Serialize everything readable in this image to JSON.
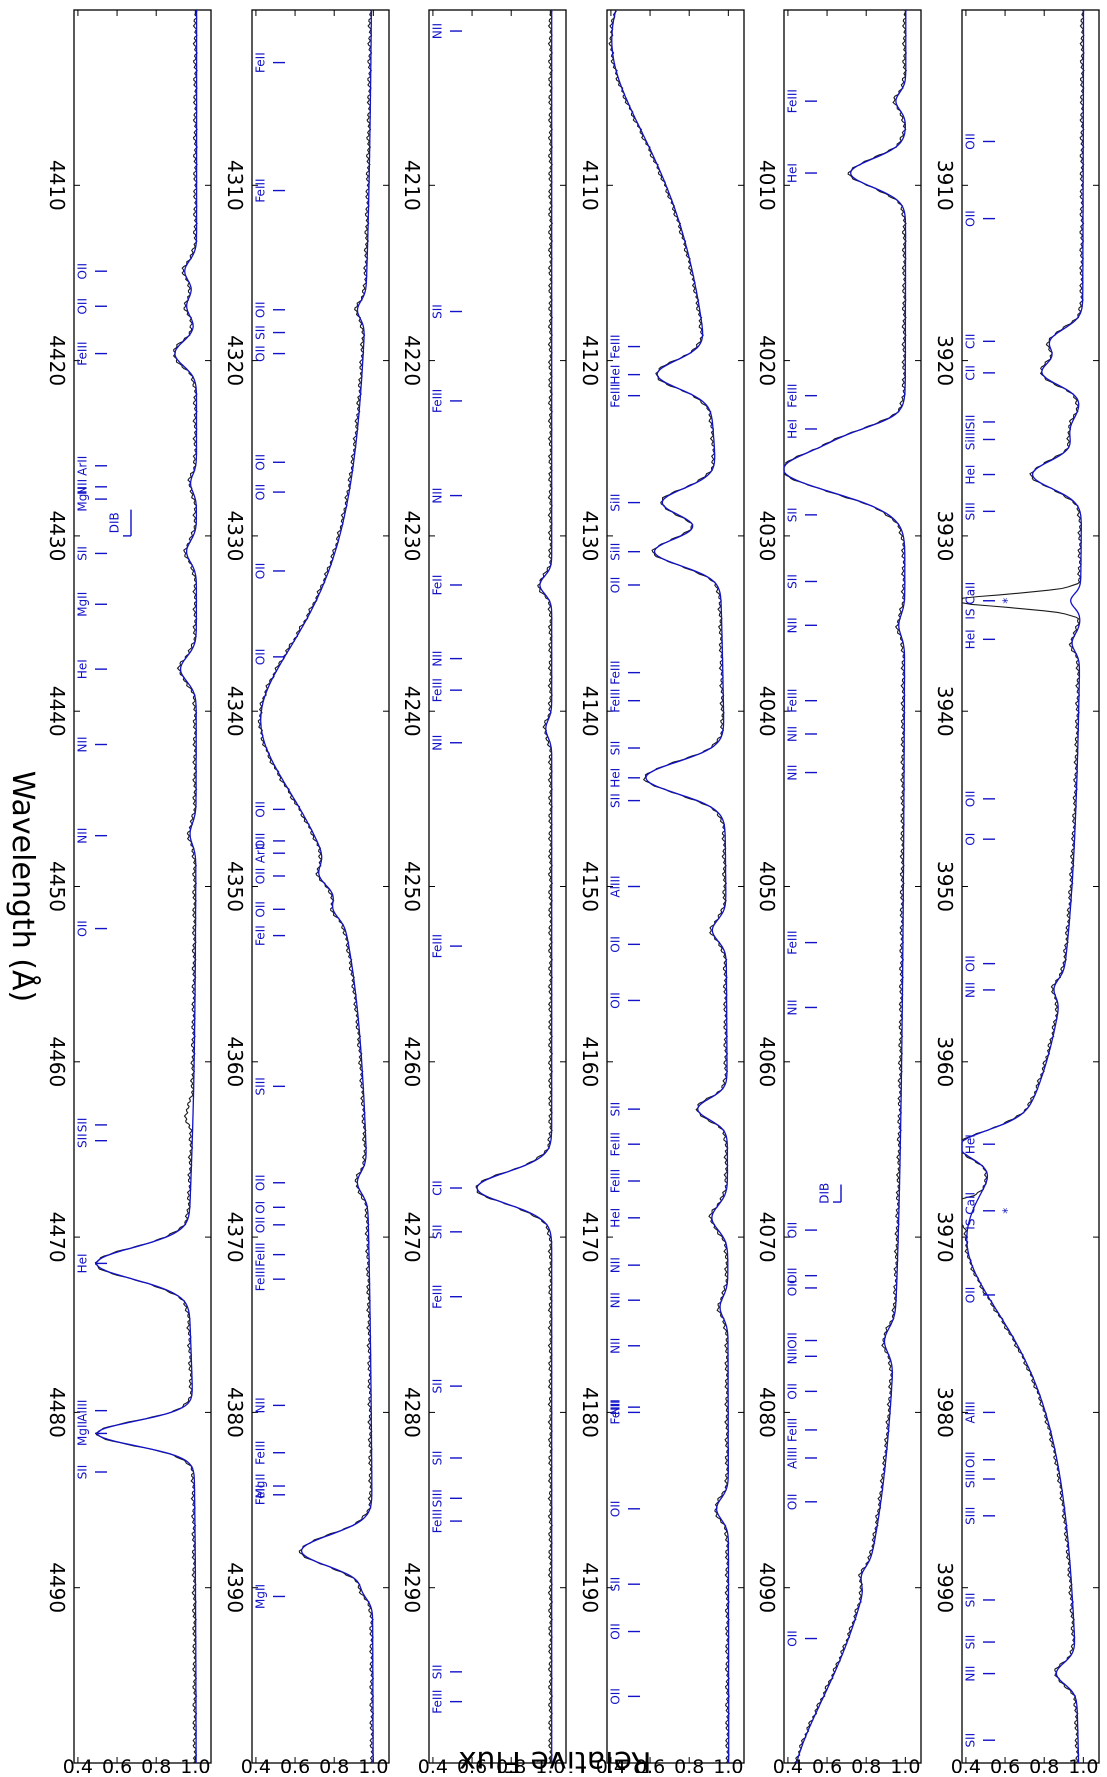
{
  "chart_data": {
    "type": "line",
    "xlabel": "Wavelength (Å)",
    "ylabel": "Relative Flux",
    "colors": {
      "observed": "#1a1a1a",
      "model": "#1212c8",
      "lines": "#1212c8"
    },
    "yticks": [
      "1.0",
      "0.8",
      "0.6",
      "0.4"
    ],
    "ylim": [
      0.38,
      1.08
    ],
    "panels": [
      {
        "xlim": [
          3900,
          4000
        ],
        "xticks": [
          "3910",
          "3920",
          "3930",
          "3940",
          "3950",
          "3960",
          "3970",
          "3980",
          "3990"
        ],
        "continuum": [],
        "features": [
          {
            "x": 3918.9,
            "depth": 0.16,
            "width": 0.7
          },
          {
            "x": 3920.7,
            "depth": 0.2,
            "width": 0.7
          },
          {
            "x": 3926.5,
            "depth": 0.25,
            "width": 0.8
          },
          {
            "x": 3924,
            "depth": 0.06,
            "width": 0.8
          },
          {
            "x": 3933.7,
            "depth": 0.05,
            "width": 0.4
          },
          {
            "x": 3964.7,
            "depth": 0.26,
            "width": 0.8
          },
          {
            "x": 3970.1,
            "depth": 0.6,
            "width": 7.0,
            "shape": "L"
          },
          {
            "x": 3994.9,
            "depth": 0.1,
            "width": 0.6
          },
          {
            "x": 3955.8,
            "depth": 0.04,
            "width": 0.5
          },
          {
            "x": 3936.1,
            "depth": 0.04,
            "width": 0.5
          }
        ],
        "ism": [
          {
            "x": 3933.7,
            "depth": 0.6,
            "width": 0.35
          },
          {
            "x": 3968.5,
            "depth": 0.55,
            "width": 0.35
          }
        ],
        "lines": [
          {
            "x": 3907.5,
            "label": "OII"
          },
          {
            "x": 3911.9,
            "label": "OII"
          },
          {
            "x": 3918.9,
            "label": "CII"
          },
          {
            "x": 3920.7,
            "label": "CII"
          },
          {
            "x": 3923.5,
            "label": "SII"
          },
          {
            "x": 3924.5,
            "label": "SiIII"
          },
          {
            "x": 3926.5,
            "label": "HeI"
          },
          {
            "x": 3928.6,
            "label": "SIII"
          },
          {
            "x": 3933.7,
            "label": "IS CaII",
            "mark": "*"
          },
          {
            "x": 3935.9,
            "label": "HeI"
          },
          {
            "x": 3945.0,
            "label": "OII"
          },
          {
            "x": 3947.3,
            "label": "OI"
          },
          {
            "x": 3954.4,
            "label": "OII"
          },
          {
            "x": 3955.9,
            "label": "NII"
          },
          {
            "x": 3964.7,
            "label": "HeI"
          },
          {
            "x": 3968.5,
            "label": "IS CaII",
            "mark": "*"
          },
          {
            "x": 3973.3,
            "label": "OII"
          },
          {
            "x": 3980.0,
            "label": "AlIII"
          },
          {
            "x": 3982.7,
            "label": "OII"
          },
          {
            "x": 3983.8,
            "label": "SIII"
          },
          {
            "x": 3985.9,
            "label": "SIII"
          },
          {
            "x": 3990.7,
            "label": "SII"
          },
          {
            "x": 3993.1,
            "label": "SII"
          },
          {
            "x": 3994.9,
            "label": "NII"
          },
          {
            "x": 3998.7,
            "label": "SII"
          }
        ]
      },
      {
        "xlim": [
          4000,
          4100
        ],
        "xticks": [
          "4010",
          "4020",
          "4030",
          "4040",
          "4050",
          "4060",
          "4070",
          "4080",
          "4090"
        ],
        "continuum": [
          {
            "x": 4101.7,
            "depth": 0.58,
            "width": 9.0
          }
        ],
        "features": [
          {
            "x": 4009.3,
            "depth": 0.28,
            "width": 0.8
          },
          {
            "x": 4026.2,
            "depth": 0.62,
            "width": 1.3
          },
          {
            "x": 4024.2,
            "depth": 0.1,
            "width": 0.6
          },
          {
            "x": 4005.2,
            "depth": 0.05,
            "width": 0.5
          },
          {
            "x": 4075.9,
            "depth": 0.05,
            "width": 0.7
          },
          {
            "x": 4035.1,
            "depth": 0.03,
            "width": 0.6
          },
          {
            "x": 4089.3,
            "depth": 0.03,
            "width": 0.5
          }
        ],
        "ism": [],
        "lines": [
          {
            "x": 4005.2,
            "label": "FeIII"
          },
          {
            "x": 4009.3,
            "label": "HeI"
          },
          {
            "x": 4022.0,
            "label": "FeIII"
          },
          {
            "x": 4023.9,
            "label": "HeI"
          },
          {
            "x": 4028.8,
            "label": "SII"
          },
          {
            "x": 4032.6,
            "label": "SII"
          },
          {
            "x": 4035.1,
            "label": "NII"
          },
          {
            "x": 4039.4,
            "label": "FeIII"
          },
          {
            "x": 4041.3,
            "label": "NII"
          },
          {
            "x": 4043.5,
            "label": "NII"
          },
          {
            "x": 4053.2,
            "label": "FeIII"
          },
          {
            "x": 4056.9,
            "label": "NII"
          },
          {
            "x": 4067,
            "label": "DIB",
            "dib": true,
            "dibEnd": 4068
          },
          {
            "x": 4069.6,
            "label": "OII"
          },
          {
            "x": 4072.2,
            "label": "OII"
          },
          {
            "x": 4072.9,
            "label": "OII"
          },
          {
            "x": 4075.9,
            "label": "OII"
          },
          {
            "x": 4076.8,
            "label": "NII"
          },
          {
            "x": 4078.8,
            "label": "OII"
          },
          {
            "x": 4081.0,
            "label": "FeIII"
          },
          {
            "x": 4082.6,
            "label": "AlIII"
          },
          {
            "x": 4085.1,
            "label": "OII"
          },
          {
            "x": 4092.9,
            "label": "OII"
          }
        ]
      },
      {
        "xlim": [
          4100,
          4200
        ],
        "xticks": [
          "4110",
          "4120",
          "4130",
          "4140",
          "4150",
          "4160",
          "4170",
          "4180",
          "4190"
        ],
        "continuum": [
          {
            "x": 4101.7,
            "depth": 0.6,
            "width": 9.0
          }
        ],
        "features": [
          {
            "x": 4120.8,
            "depth": 0.26,
            "width": 0.8
          },
          {
            "x": 4128.1,
            "depth": 0.28,
            "width": 0.8
          },
          {
            "x": 4130.9,
            "depth": 0.33,
            "width": 0.8
          },
          {
            "x": 4143.8,
            "depth": 0.4,
            "width": 0.9
          },
          {
            "x": 4152.5,
            "depth": 0.07,
            "width": 0.6
          },
          {
            "x": 4162.7,
            "depth": 0.15,
            "width": 0.6
          },
          {
            "x": 4168.9,
            "depth": 0.08,
            "width": 0.7
          },
          {
            "x": 4185.5,
            "depth": 0.06,
            "width": 0.6
          },
          {
            "x": 4174.0,
            "depth": 0.04,
            "width": 0.6
          }
        ],
        "ism": [],
        "lines": [
          {
            "x": 4119.2,
            "label": "FeIII"
          },
          {
            "x": 4120.8,
            "label": "HeI"
          },
          {
            "x": 4122.0,
            "label": "FeIII"
          },
          {
            "x": 4128.1,
            "label": "SiII"
          },
          {
            "x": 4130.9,
            "label": "SiII"
          },
          {
            "x": 4132.8,
            "label": "OII"
          },
          {
            "x": 4137.8,
            "label": "FeIII"
          },
          {
            "x": 4139.4,
            "label": "FeIII"
          },
          {
            "x": 4142.1,
            "label": "SII"
          },
          {
            "x": 4143.8,
            "label": "HeI"
          },
          {
            "x": 4145.1,
            "label": "SII"
          },
          {
            "x": 4150.0,
            "label": "AlIII"
          },
          {
            "x": 4153.3,
            "label": "OII"
          },
          {
            "x": 4156.5,
            "label": "OII"
          },
          {
            "x": 4162.7,
            "label": "SII"
          },
          {
            "x": 4164.7,
            "label": "FeIII"
          },
          {
            "x": 4166.8,
            "label": "FeIII"
          },
          {
            "x": 4168.9,
            "label": "HeI"
          },
          {
            "x": 4171.6,
            "label": "NII"
          },
          {
            "x": 4173.6,
            "label": "NII"
          },
          {
            "x": 4176.2,
            "label": "NII"
          },
          {
            "x": 4179.7,
            "label": "NII"
          },
          {
            "x": 4180.0,
            "label": "FeIII"
          },
          {
            "x": 4185.5,
            "label": "OII"
          },
          {
            "x": 4189.8,
            "label": "SII"
          },
          {
            "x": 4192.5,
            "label": "OII"
          },
          {
            "x": 4196.2,
            "label": "OII"
          }
        ]
      },
      {
        "xlim": [
          4200,
          4300
        ],
        "xticks": [
          "4210",
          "4220",
          "4230",
          "4240",
          "4250",
          "4260",
          "4270",
          "4280",
          "4290"
        ],
        "continuum": [],
        "features": [
          {
            "x": 4194.6,
            "depth": 0.06,
            "width": 0.6
          },
          {
            "x": 4267.2,
            "depth": 0.38,
            "width": 0.9
          },
          {
            "x": 4232.8,
            "depth": 0.06,
            "width": 0.5
          },
          {
            "x": 4241.0,
            "depth": 0.03,
            "width": 0.5
          }
        ],
        "ism": [],
        "lines": [
          {
            "x": 4201.2,
            "label": "NII"
          },
          {
            "x": 4217.2,
            "label": "SII"
          },
          {
            "x": 4222.3,
            "label": "FeIII"
          },
          {
            "x": 4227.7,
            "label": "NII"
          },
          {
            "x": 4232.8,
            "label": "FeII"
          },
          {
            "x": 4237.0,
            "label": "NII"
          },
          {
            "x": 4238.8,
            "label": "FeIII"
          },
          {
            "x": 4241.8,
            "label": "NII"
          },
          {
            "x": 4253.4,
            "label": "FeIII"
          },
          {
            "x": 4267.2,
            "label": "CII"
          },
          {
            "x": 4269.7,
            "label": "SII"
          },
          {
            "x": 4273.4,
            "label": "FeIII"
          },
          {
            "x": 4278.5,
            "label": "SII"
          },
          {
            "x": 4282.6,
            "label": "SII"
          },
          {
            "x": 4284.9,
            "label": "SIII"
          },
          {
            "x": 4286.2,
            "label": "FeIII"
          },
          {
            "x": 4294.8,
            "label": "SII"
          },
          {
            "x": 4296.5,
            "label": "FeIII"
          }
        ]
      },
      {
        "xlim": [
          4300,
          4400
        ],
        "xticks": [
          "4310",
          "4320",
          "4330",
          "4340",
          "4350",
          "4360",
          "4370",
          "4380",
          "4390"
        ],
        "continuum": [
          {
            "x": 4340.5,
            "depth": 0.58,
            "width": 7.0
          }
        ],
        "features": [
          {
            "x": 4387.9,
            "depth": 0.36,
            "width": 0.9
          },
          {
            "x": 4295.9,
            "depth": 0.05,
            "width": 0.5
          },
          {
            "x": 4349.4,
            "depth": 0.06,
            "width": 0.6
          },
          {
            "x": 4351.3,
            "depth": 0.04,
            "width": 0.5
          },
          {
            "x": 4366.9,
            "depth": 0.05,
            "width": 0.6
          },
          {
            "x": 4390.2,
            "depth": 0.04,
            "width": 0.5
          },
          {
            "x": 4317.1,
            "depth": 0.04,
            "width": 0.5
          }
        ],
        "ism": [],
        "lines": [
          {
            "x": 4303.0,
            "label": "FeII"
          },
          {
            "x": 4310.3,
            "label": "FeIII"
          },
          {
            "x": 4317.1,
            "label": "OII"
          },
          {
            "x": 4318.4,
            "label": "SII"
          },
          {
            "x": 4319.6,
            "label": "OII"
          },
          {
            "x": 4325.8,
            "label": "OII"
          },
          {
            "x": 4327.5,
            "label": "OII"
          },
          {
            "x": 4332.0,
            "label": "OII"
          },
          {
            "x": 4336.9,
            "label": "OII"
          },
          {
            "x": 4345.6,
            "label": "OII"
          },
          {
            "x": 4347.4,
            "label": "OII"
          },
          {
            "x": 4348.1,
            "label": "ArII"
          },
          {
            "x": 4349.4,
            "label": "OII"
          },
          {
            "x": 4351.3,
            "label": "OII"
          },
          {
            "x": 4352.8,
            "label": "FeII"
          },
          {
            "x": 4361.4,
            "label": "SIII"
          },
          {
            "x": 4366.9,
            "label": "OII"
          },
          {
            "x": 4368.3,
            "label": "OI"
          },
          {
            "x": 4369.3,
            "label": "OII"
          },
          {
            "x": 4371.0,
            "label": "FeIII"
          },
          {
            "x": 4372.4,
            "label": "FeIII"
          },
          {
            "x": 4379.6,
            "label": "NII"
          },
          {
            "x": 4382.3,
            "label": "FeIII"
          },
          {
            "x": 4384.2,
            "label": "MgII"
          },
          {
            "x": 4384.7,
            "label": "FeII"
          },
          {
            "x": 4390.5,
            "label": "MgII"
          }
        ]
      },
      {
        "xlim": [
          4400,
          4500
        ],
        "xticks": [
          "4410",
          "4420",
          "4430",
          "4440",
          "4450",
          "4460",
          "4470",
          "4480",
          "4490"
        ],
        "continuum": [
          {
            "x": 4471.5,
            "depth": 0.04,
            "width": 8.0
          }
        ],
        "features": [
          {
            "x": 4471.5,
            "depth": 0.47,
            "width": 0.9
          },
          {
            "x": 4481.2,
            "depth": 0.49,
            "width": 0.7
          },
          {
            "x": 4419.6,
            "depth": 0.11,
            "width": 0.7
          },
          {
            "x": 4414.9,
            "depth": 0.06,
            "width": 0.6
          },
          {
            "x": 4416.9,
            "depth": 0.05,
            "width": 0.6
          },
          {
            "x": 4437.6,
            "depth": 0.08,
            "width": 0.7
          },
          {
            "x": 4447.0,
            "depth": 0.03,
            "width": 0.6
          },
          {
            "x": 4430.9,
            "depth": 0.05,
            "width": 0.6
          },
          {
            "x": 4427.0,
            "depth": 0.03,
            "width": 0.5
          }
        ],
        "ism": [
          {
            "x": 4463.0,
            "depth": 0.03,
            "width": 0.5
          }
        ],
        "lines": [
          {
            "x": 4414.9,
            "label": "OII"
          },
          {
            "x": 4416.9,
            "label": "OII"
          },
          {
            "x": 4419.6,
            "label": "FeIII"
          },
          {
            "x": 4426.0,
            "label": "ArII"
          },
          {
            "x": 4427.2,
            "label": "NII"
          },
          {
            "x": 4427.9,
            "label": "MgII"
          },
          {
            "x": 4428.5,
            "label": "DIB",
            "dib": true,
            "dibEnd": 4430
          },
          {
            "x": 4431.0,
            "label": "SII"
          },
          {
            "x": 4433.9,
            "label": "MgII"
          },
          {
            "x": 4437.6,
            "label": "HeI"
          },
          {
            "x": 4441.9,
            "label": "NII"
          },
          {
            "x": 4447.1,
            "label": "NII"
          },
          {
            "x": 4452.4,
            "label": "OII"
          },
          {
            "x": 4463.6,
            "label": "SII"
          },
          {
            "x": 4464.5,
            "label": "SII"
          },
          {
            "x": 4471.5,
            "label": "HeI"
          },
          {
            "x": 4479.9,
            "label": "AlIII"
          },
          {
            "x": 4481.2,
            "label": "MgII"
          },
          {
            "x": 4483.4,
            "label": "SII"
          }
        ]
      }
    ]
  }
}
